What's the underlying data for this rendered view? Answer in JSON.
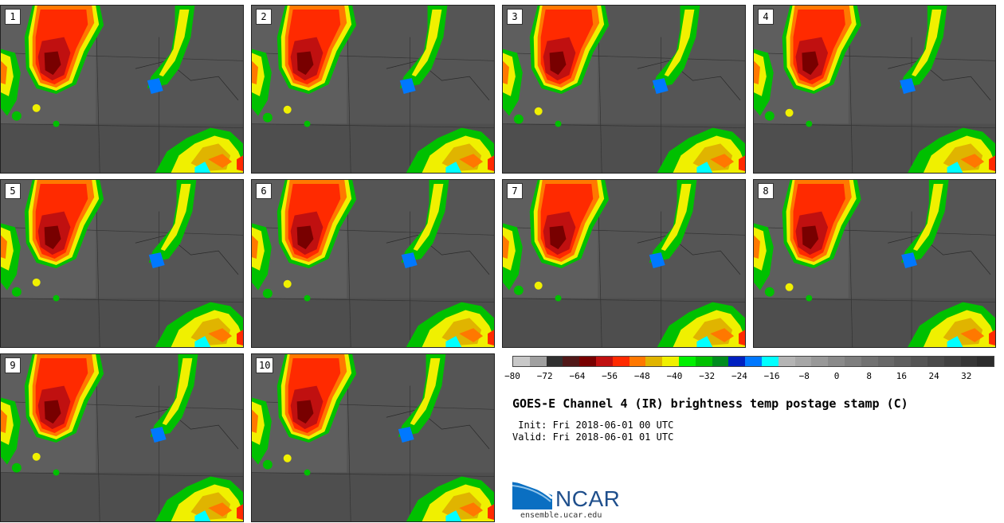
{
  "panels": [
    {
      "label": "1"
    },
    {
      "label": "2"
    },
    {
      "label": "3"
    },
    {
      "label": "4"
    },
    {
      "label": "5"
    },
    {
      "label": "6"
    },
    {
      "label": "7"
    },
    {
      "label": "8"
    },
    {
      "label": "9"
    },
    {
      "label": "10"
    }
  ],
  "colorbar": {
    "colors": [
      "#c8c8c8",
      "#a0a0a0",
      "#303030",
      "#501818",
      "#780000",
      "#c01010",
      "#ff2a00",
      "#ff7800",
      "#e0b400",
      "#f0f000",
      "#00f000",
      "#00c000",
      "#008c1e",
      "#0020c0",
      "#0078ff",
      "#00ffff",
      "#b4b4b4",
      "#a6a6a6",
      "#989898",
      "#8a8a8a",
      "#7e7e7e",
      "#727272",
      "#686868",
      "#5e5e5e",
      "#545454",
      "#4a4a4a",
      "#404040",
      "#363636",
      "#2c2c2c"
    ],
    "labels": [
      "−80",
      "−72",
      "−64",
      "−56",
      "−48",
      "−40",
      "−32",
      "−24",
      "−16",
      "−8",
      "0",
      "8",
      "16",
      "24",
      "32"
    ]
  },
  "title": "GOES-E Channel 4 (IR) brightness temp postage stamp (C)",
  "init": " Init: Fri 2018-06-01 00 UTC",
  "valid": "Valid: Fri 2018-06-01 01 UTC",
  "logo": {
    "text": "NCAR",
    "site": "ensemble.ucar.edu"
  }
}
